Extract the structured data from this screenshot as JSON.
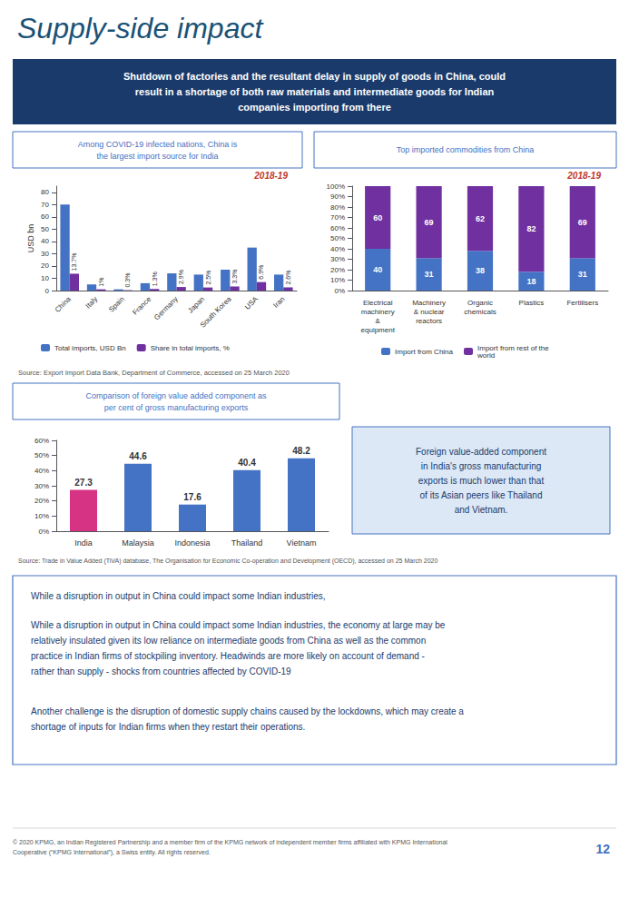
{
  "title": "Supply-side impact",
  "subtitle": "Shutdown of factories and the resultant delay in supply of goods in China, could\nresult in a shortage of both raw materials and intermediate goods for Indian\ncompanies importing from there",
  "annotations": [
    "Source: Export Import Data Bank, Department of Commerce, accessed on 25 March 2020",
    "Source: Trade in Value Added (TiVA) database, The Organisation for Economic Co-operation and Development (OECD), accessed on 25 March 2020",
    "While a disruption in output in China could impact some Indian industries, ",
    "While a disruption in output in China could impact some Indian industries, the economy at large may be\nrelatively insulated given its low reliance on intermediate goods from China as well as the common\npractice in Indian firms of stockpiling inventory. Headwinds are more likely on account of demand -\nrather than supply - shocks from countries affected by COVID-19",
    "Another challenge is the disruption of domestic supply chains caused by the lockdowns, which may create a\nshortage of inputs for Indian firms when they restart their operations.",
    "© 2020 KPMG, an Indian Registered Partnership and a member firm of the KPMG network of independent member firms affiliated with KPMG International\nCooperative (“KPMG International”), a Swiss entity. All rights reserved.",
    "12"
  ],
  "chart_data": [
    {
      "type": "bar",
      "title": "Among COVID-19 infected nations, China is\nthe largest import source for India",
      "subtitle": "2018-19",
      "categories": [
        "China",
        "Italy",
        "Spain",
        "France",
        "Germany",
        "Japan",
        "South Korea",
        "USA",
        "Iran"
      ],
      "series": [
        {
          "name": "Total imports, USD Bn",
          "color": "#4472c4",
          "values": [
            70,
            5,
            1,
            6,
            14,
            13,
            17,
            35,
            13
          ]
        },
        {
          "name": "Share in total imports, %",
          "color": "#7030a0",
          "values": [
            13.7,
            1.0,
            0.3,
            1.3,
            2.9,
            2.5,
            3.3,
            6.9,
            2.6
          ],
          "data_labels": true,
          "value_labels": [
            "13.7%",
            "1%",
            "0.3%",
            "1.3%",
            "2.9%",
            "2.5%",
            "3.3%",
            "6.9%",
            "2.6%"
          ]
        }
      ],
      "ylabel": "USD bn",
      "ylim": [
        0,
        85
      ],
      "yticks": [
        0,
        10,
        20,
        30,
        40,
        50,
        60,
        70,
        80
      ],
      "grid": false,
      "legend": "bottom"
    },
    {
      "type": "bar",
      "title": "Top imported commodities from China",
      "subtitle": "2018-19",
      "categories": [
        "Electrical\nmachinery\n&\nequipment",
        "Machinery\n& nuclear\nreactors",
        "Organic\nchemicals",
        "Plastics",
        "Fertilisers"
      ],
      "series": [
        {
          "name": "Import from China",
          "color": "#4472c4",
          "values": [
            40,
            31,
            38,
            18,
            31
          ]
        },
        {
          "name": "Import from rest of the\nworld",
          "color": "#7030a0",
          "values": [
            60,
            69,
            62,
            82,
            69
          ]
        }
      ],
      "stacked": true,
      "data_labels": true,
      "ylim": [
        0,
        100
      ],
      "yticks": [
        {
          "value": 0,
          "label": "0%"
        },
        {
          "value": 10,
          "label": "10%"
        },
        {
          "value": 20,
          "label": "20%"
        },
        {
          "value": 30,
          "label": "30%"
        },
        {
          "value": 40,
          "label": "40%"
        },
        {
          "value": 50,
          "label": "50%"
        },
        {
          "value": 60,
          "label": "60%"
        },
        {
          "value": 70,
          "label": "70%"
        },
        {
          "value": 80,
          "label": "80%"
        },
        {
          "value": 90,
          "label": "90%"
        },
        {
          "value": 100,
          "label": "100%"
        }
      ],
      "grid": false,
      "legend": "bottom"
    },
    {
      "type": "bar",
      "title": "Comparison of foreign value added component as\nper cent of gross manufacturing exports",
      "categories": [
        "India",
        "Malaysia",
        "Indonesia",
        "Thailand",
        "Vietnam"
      ],
      "values": [
        27.3,
        44.6,
        17.6,
        40.4,
        48.2
      ],
      "colors": [
        "#d63384",
        "#4472c4",
        "#4472c4",
        "#4472c4",
        "#4472c4"
      ],
      "data_labels": true,
      "ylim": [
        0,
        60
      ],
      "yticks": [
        {
          "value": 0,
          "label": "0%"
        },
        {
          "value": 10,
          "label": "10%"
        },
        {
          "value": 20,
          "label": "20%"
        },
        {
          "value": 30,
          "label": "30%"
        },
        {
          "value": 40,
          "label": "40%"
        },
        {
          "value": 50,
          "label": "50%"
        },
        {
          "value": 60,
          "label": "60%"
        }
      ],
      "grid": false,
      "annotations": [
        "Foreign value-added component\nin India's gross manufacturing\nexports is much lower than that\nof its Asian peers like Thailand\nand Vietnam."
      ]
    }
  ]
}
